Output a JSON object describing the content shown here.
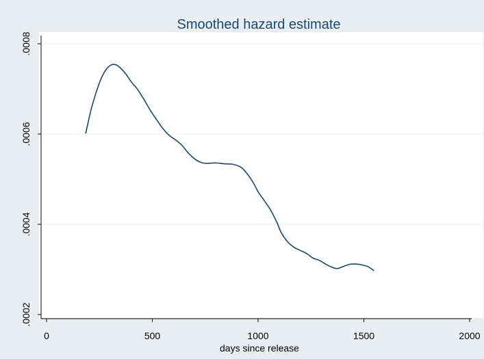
{
  "chart_data": {
    "type": "line",
    "title": "Smoothed hazard estimate",
    "xlabel": "days since release",
    "ylabel": "",
    "xlim": [
      0,
      2000
    ],
    "ylim": [
      0.0002,
      0.0008
    ],
    "x_ticks": [
      0,
      500,
      1000,
      1500,
      2000
    ],
    "x_tick_labels": [
      "0",
      "500",
      "1000",
      "1500",
      "2000"
    ],
    "y_ticks": [
      0.0002,
      0.0004,
      0.0006,
      0.0008
    ],
    "y_tick_labels": [
      ".0002",
      ".0004",
      ".0006",
      ".0008"
    ],
    "grid": "horizontal",
    "legend": "none",
    "series": [
      {
        "x": [
          185,
          210,
          235,
          260,
          285,
          310,
          330,
          350,
          375,
          400,
          430,
          460,
          490,
          520,
          550,
          580,
          610,
          640,
          670,
          700,
          730,
          760,
          800,
          840,
          880,
          920,
          950,
          980,
          1000,
          1030,
          1060,
          1090,
          1110,
          1140,
          1170,
          1200,
          1230,
          1260,
          1290,
          1330,
          1370,
          1400,
          1430,
          1460,
          1490,
          1520,
          1548
        ],
        "y": [
          0.000601,
          0.000653,
          0.000693,
          0.000725,
          0.000745,
          0.000754,
          0.000753,
          0.000746,
          0.000733,
          0.000716,
          0.000699,
          0.000677,
          0.000653,
          0.000632,
          0.000612,
          0.000597,
          0.000587,
          0.000575,
          0.000558,
          0.000545,
          0.000537,
          0.000535,
          0.000536,
          0.000534,
          0.000533,
          0.000526,
          0.000511,
          0.00049,
          0.000472,
          0.000452,
          0.000431,
          0.000403,
          0.000381,
          0.000361,
          0.000349,
          0.000342,
          0.000335,
          0.000325,
          0.00032,
          0.000309,
          0.000302,
          0.000306,
          0.000311,
          0.000312,
          0.00031,
          0.000306,
          0.000297
        ]
      }
    ],
    "colors": {
      "line": "#1a476f",
      "title": "#1a476f",
      "outer_background": "#e8eef2",
      "plot_background": "#ffffff",
      "grid": "#eaf2f3",
      "axis": "#000000"
    }
  }
}
